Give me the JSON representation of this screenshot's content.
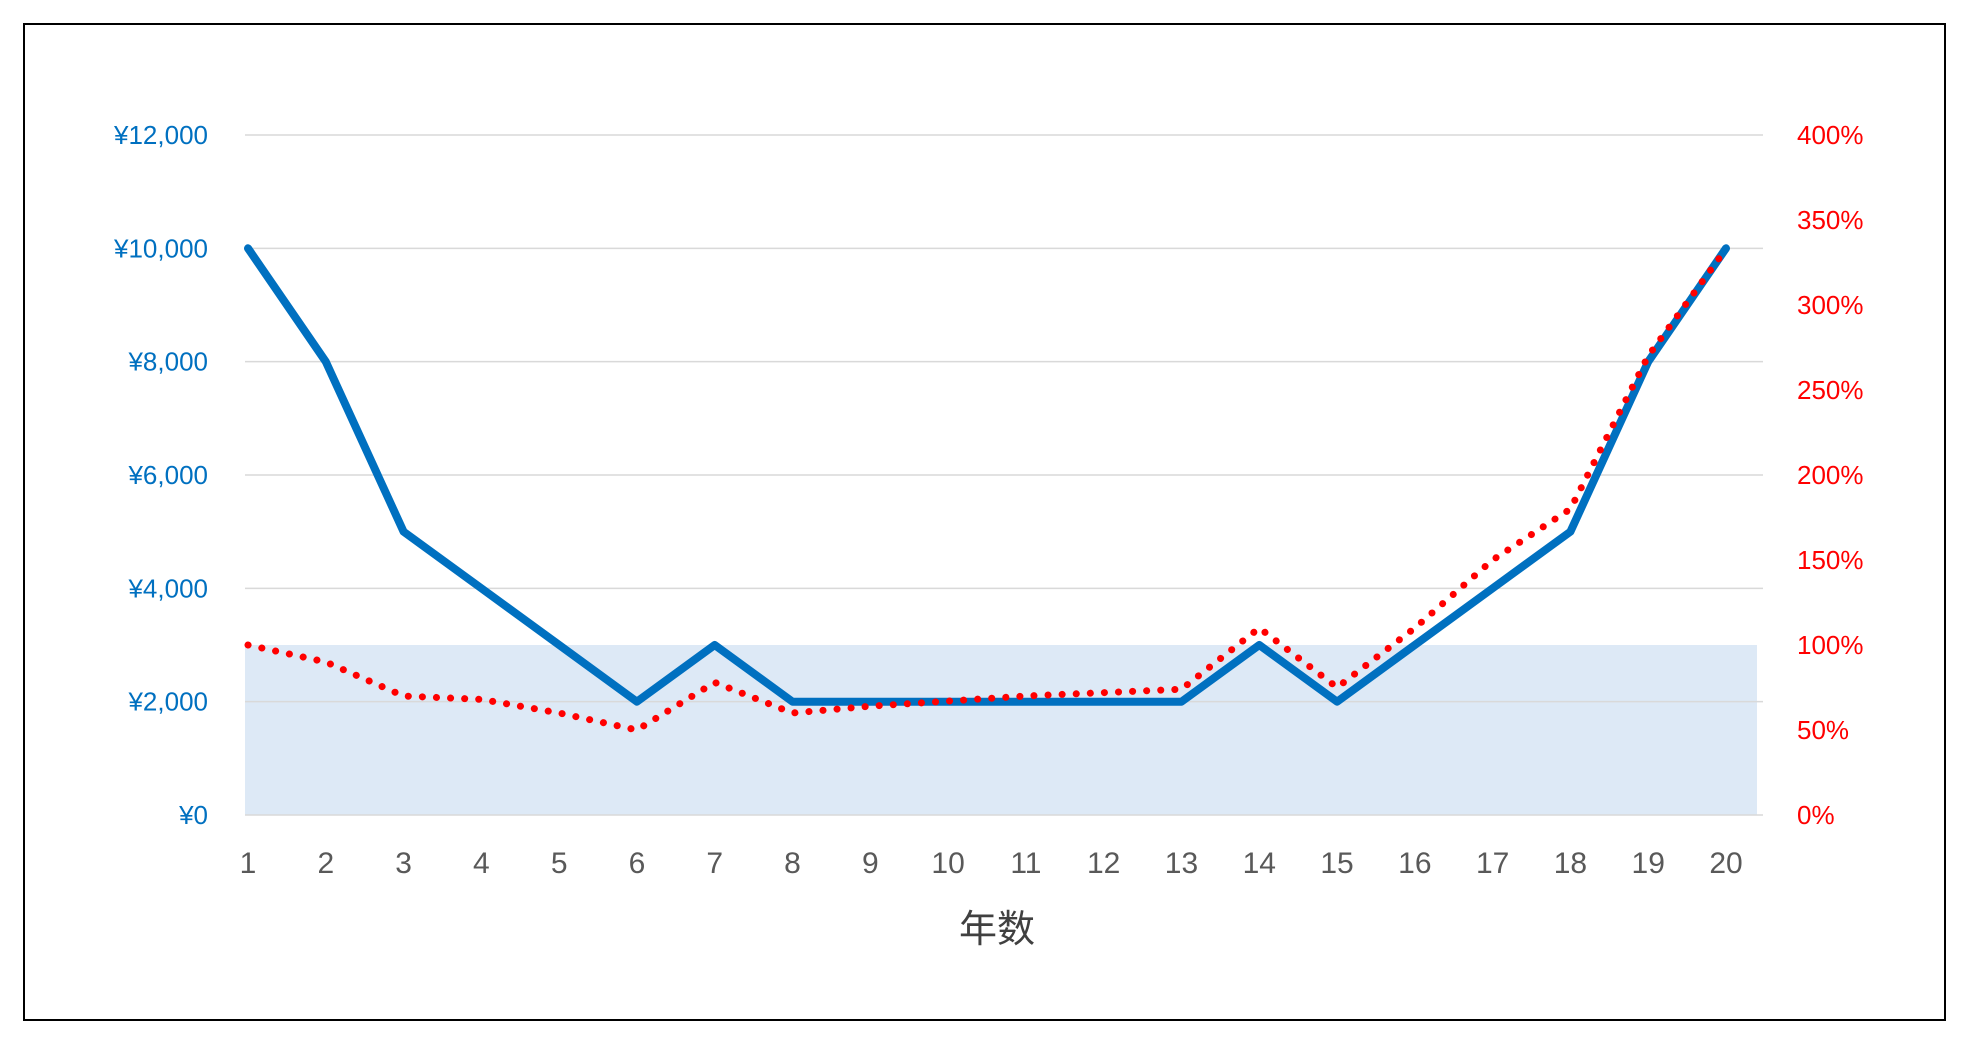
{
  "chart_data": {
    "type": "line",
    "title": "",
    "xlabel": "年数",
    "ylabel": "",
    "y2label": "",
    "categories": [
      "1",
      "2",
      "3",
      "4",
      "5",
      "6",
      "7",
      "8",
      "9",
      "10",
      "11",
      "12",
      "13",
      "14",
      "15",
      "16",
      "17",
      "18",
      "19",
      "20"
    ],
    "ylim": [
      0,
      12000
    ],
    "y2lim": [
      0,
      400
    ],
    "yticks": [
      "¥0",
      "¥2,000",
      "¥4,000",
      "¥6,000",
      "¥8,000",
      "¥10,000",
      "¥12,000"
    ],
    "y2ticks": [
      "0%",
      "50%",
      "100%",
      "150%",
      "200%",
      "250%",
      "300%",
      "350%",
      "400%"
    ],
    "grid": true,
    "legend": "none",
    "band": {
      "axis": "right",
      "from": 0,
      "to": 100,
      "color": "#dde9f6"
    },
    "series": [
      {
        "axis": "left",
        "style": "solid",
        "color": "#0070c0",
        "values": [
          10000,
          8000,
          5000,
          4000,
          3000,
          2000,
          3000,
          2000,
          2000,
          2000,
          2000,
          2000,
          2000,
          3000,
          2000,
          3000,
          4000,
          5000,
          8000,
          10000
        ]
      },
      {
        "axis": "right",
        "style": "dotted",
        "color": "#ff0000",
        "values": [
          100,
          90,
          70,
          68,
          60,
          50,
          78,
          60,
          64,
          67,
          70,
          72,
          74,
          110,
          75,
          110,
          150,
          180,
          270,
          333
        ]
      }
    ]
  }
}
